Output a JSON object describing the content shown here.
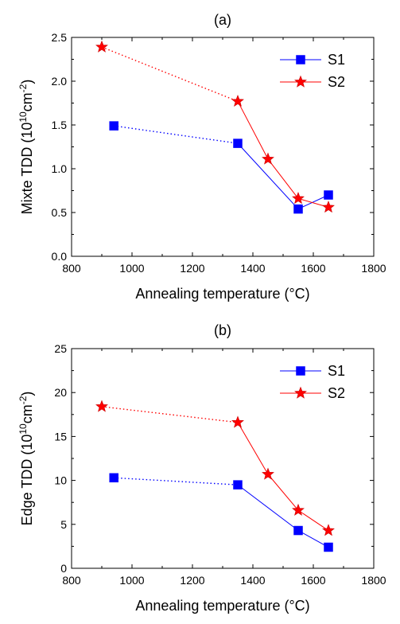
{
  "chart_data": [
    {
      "type": "line",
      "title": "(a)",
      "xlabel": "Annealing temperature (°C)",
      "ylabel": {
        "prefix": "Mixte TDD (10",
        "exp1": "10",
        "mid": "cm",
        "exp2": "-2",
        "suffix": ")"
      },
      "xlim": [
        800,
        1800
      ],
      "ylim": [
        0,
        2.5
      ],
      "xticks": [
        800,
        1000,
        1200,
        1400,
        1600,
        1800
      ],
      "yticks": [
        "0.0",
        "0.5",
        "1.0",
        "1.5",
        "2.0",
        "2.5"
      ],
      "legend_position": "top-right",
      "series": [
        {
          "name": "S1",
          "color": "#0000ff",
          "marker": "square",
          "x": [
            940,
            1350,
            1550,
            1650
          ],
          "y": [
            1.49,
            1.29,
            0.54,
            0.7
          ],
          "dotted_first_segment": true
        },
        {
          "name": "S2",
          "color": "#ff0000",
          "marker": "star",
          "x": [
            900,
            1350,
            1450,
            1550,
            1650
          ],
          "y": [
            2.39,
            1.77,
            1.11,
            0.66,
            0.56
          ],
          "dotted_first_segment": true
        }
      ]
    },
    {
      "type": "line",
      "title": "(b)",
      "xlabel": "Annealing temperature (°C)",
      "ylabel": {
        "prefix": "Edge TDD (10",
        "exp1": "10",
        "mid": "cm",
        "exp2": "-2",
        "suffix": ")"
      },
      "xlim": [
        800,
        1800
      ],
      "ylim": [
        0,
        25
      ],
      "xticks": [
        800,
        1000,
        1200,
        1400,
        1600,
        1800
      ],
      "yticks": [
        "0",
        "5",
        "10",
        "15",
        "20",
        "25"
      ],
      "legend_position": "top-right",
      "series": [
        {
          "name": "S1",
          "color": "#0000ff",
          "marker": "square",
          "x": [
            940,
            1350,
            1550,
            1650
          ],
          "y": [
            10.3,
            9.5,
            4.3,
            2.4
          ],
          "dotted_first_segment": true
        },
        {
          "name": "S2",
          "color": "#ff0000",
          "marker": "star",
          "x": [
            900,
            1350,
            1450,
            1550,
            1650
          ],
          "y": [
            18.4,
            16.6,
            10.7,
            6.6,
            4.3
          ],
          "dotted_first_segment": true
        }
      ]
    }
  ]
}
